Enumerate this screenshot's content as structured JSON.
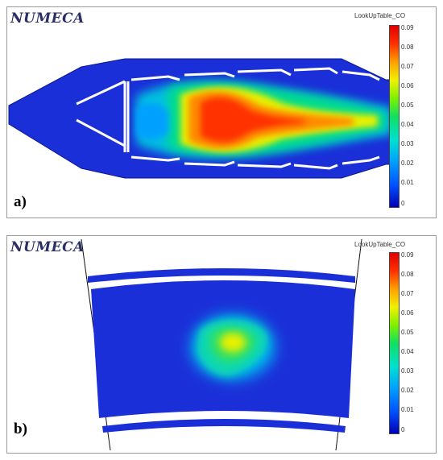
{
  "brand": "NUMECA",
  "panels": [
    {
      "label": "a)",
      "legend": {
        "title": "LookUpTable_CO",
        "ticks": [
          "0.09",
          "0.08",
          "0.07",
          "0.06",
          "0.05",
          "0.04",
          "0.03",
          "0.02",
          "0.01",
          "0"
        ]
      }
    },
    {
      "label": "b)",
      "legend": {
        "title": "LookUpTable_CO",
        "ticks": [
          "0.09",
          "0.08",
          "0.07",
          "0.06",
          "0.05",
          "0.04",
          "0.03",
          "0.02",
          "0.01",
          "0"
        ]
      }
    }
  ],
  "colors": {
    "field_low": "#1a2fd8",
    "field_high": "#e21b00",
    "wall": "#ffffff",
    "brand": "#2a2f66"
  }
}
